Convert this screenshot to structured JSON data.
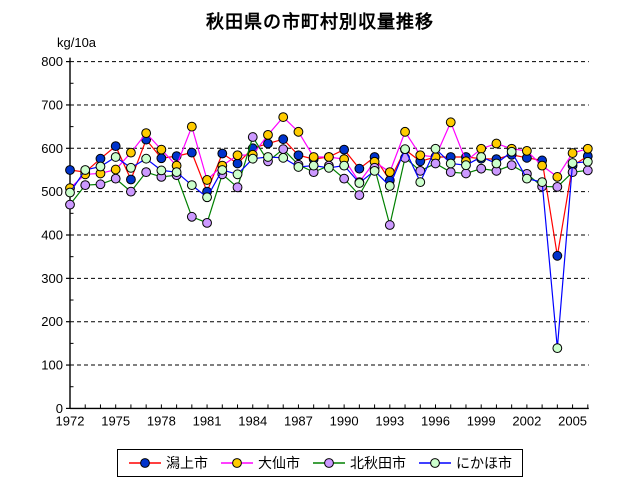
{
  "title": "秋田県の市町村別収量推移",
  "y_axis_unit": "kg/10a",
  "chart_data": {
    "type": "line",
    "title": "秋田県の市町村別収量推移",
    "ylabel": "kg/10a",
    "xlabel": "",
    "ylim": [
      0,
      800
    ],
    "y_ticks": [
      0,
      100,
      200,
      300,
      400,
      500,
      600,
      700,
      800
    ],
    "y_minor_tick_step": 50,
    "grid": "horizontal-dashed",
    "legend_position": "bottom",
    "x": [
      1972,
      1973,
      1974,
      1975,
      1976,
      1977,
      1978,
      1979,
      1980,
      1981,
      1982,
      1983,
      1984,
      1985,
      1986,
      1987,
      1988,
      1989,
      1990,
      1991,
      1992,
      1993,
      1994,
      1995,
      1996,
      1997,
      1998,
      1999,
      2000,
      2001,
      2002,
      2003,
      2004,
      2005,
      2006
    ],
    "x_tick_labels": [
      "1972",
      "1975",
      "1978",
      "1981",
      "1984",
      "1987",
      "1990",
      "1993",
      "1996",
      "1999",
      "2002",
      "2005"
    ],
    "series": [
      {
        "name": "潟上市",
        "marker_color": "#0033cc",
        "line_color": "#ff0000",
        "values": [
          550,
          545,
          576,
          605,
          528,
          620,
          577,
          582,
          590,
          500,
          588,
          565,
          600,
          611,
          621,
          584,
          575,
          580,
          597,
          553,
          580,
          526,
          597,
          570,
          580,
          580,
          580,
          576,
          575,
          585,
          578,
          572,
          352,
          560,
          582
        ]
      },
      {
        "name": "大仙市",
        "marker_color": "#ffcc00",
        "line_color": "#ff00ff",
        "values": [
          508,
          540,
          542,
          551,
          590,
          635,
          597,
          560,
          650,
          527,
          560,
          584,
          585,
          631,
          672,
          638,
          580,
          580,
          575,
          522,
          569,
          545,
          638,
          584,
          580,
          660,
          570,
          599,
          611,
          599,
          594,
          560,
          534,
          589,
          599
        ]
      },
      {
        "name": "北秋田市",
        "marker_color": "#cc99ff",
        "line_color": "#008000",
        "values": [
          470,
          515,
          517,
          530,
          500,
          545,
          534,
          538,
          442,
          428,
          540,
          510,
          626,
          570,
          598,
          562,
          545,
          560,
          530,
          492,
          555,
          423,
          578,
          548,
          565,
          545,
          542,
          553,
          548,
          561,
          541,
          512,
          511,
          545,
          549
        ]
      },
      {
        "name": "にかほ市",
        "marker_color": "#ccffcc",
        "line_color": "#0000ff",
        "values": [
          498,
          550,
          558,
          580,
          555,
          576,
          549,
          545,
          515,
          487,
          550,
          540,
          576,
          580,
          578,
          557,
          560,
          555,
          560,
          520,
          548,
          513,
          598,
          522,
          599,
          565,
          561,
          580,
          565,
          592,
          530,
          522,
          139,
          566,
          569
        ]
      }
    ]
  }
}
